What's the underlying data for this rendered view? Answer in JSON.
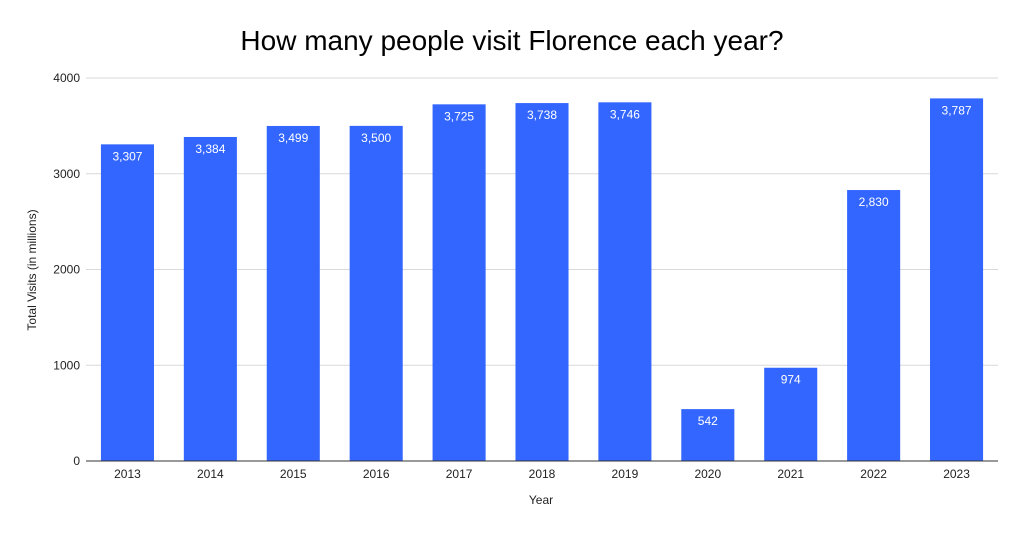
{
  "chart_data": {
    "type": "bar",
    "title": "How many people visit Florence each year?",
    "xlabel": "Year",
    "ylabel": "Total Visits (in millions)",
    "categories": [
      "2013",
      "2014",
      "2015",
      "2016",
      "2017",
      "2018",
      "2019",
      "2020",
      "2021",
      "2022",
      "2023"
    ],
    "values": [
      3307,
      3384,
      3499,
      3500,
      3725,
      3738,
      3746,
      542,
      974,
      2830,
      3787
    ],
    "data_labels": [
      "3,307",
      "3,384",
      "3,499",
      "3,500",
      "3,725",
      "3,738",
      "3,746",
      "542",
      "974",
      "2,830",
      "3,787"
    ],
    "yticks": [
      0,
      1000,
      2000,
      3000,
      4000
    ],
    "ytick_labels": [
      "0",
      "1000",
      "2000",
      "3000",
      "4000"
    ],
    "ylim": [
      0,
      4000
    ],
    "grid": true,
    "legend": "none",
    "bar_color": "#3366ff"
  }
}
